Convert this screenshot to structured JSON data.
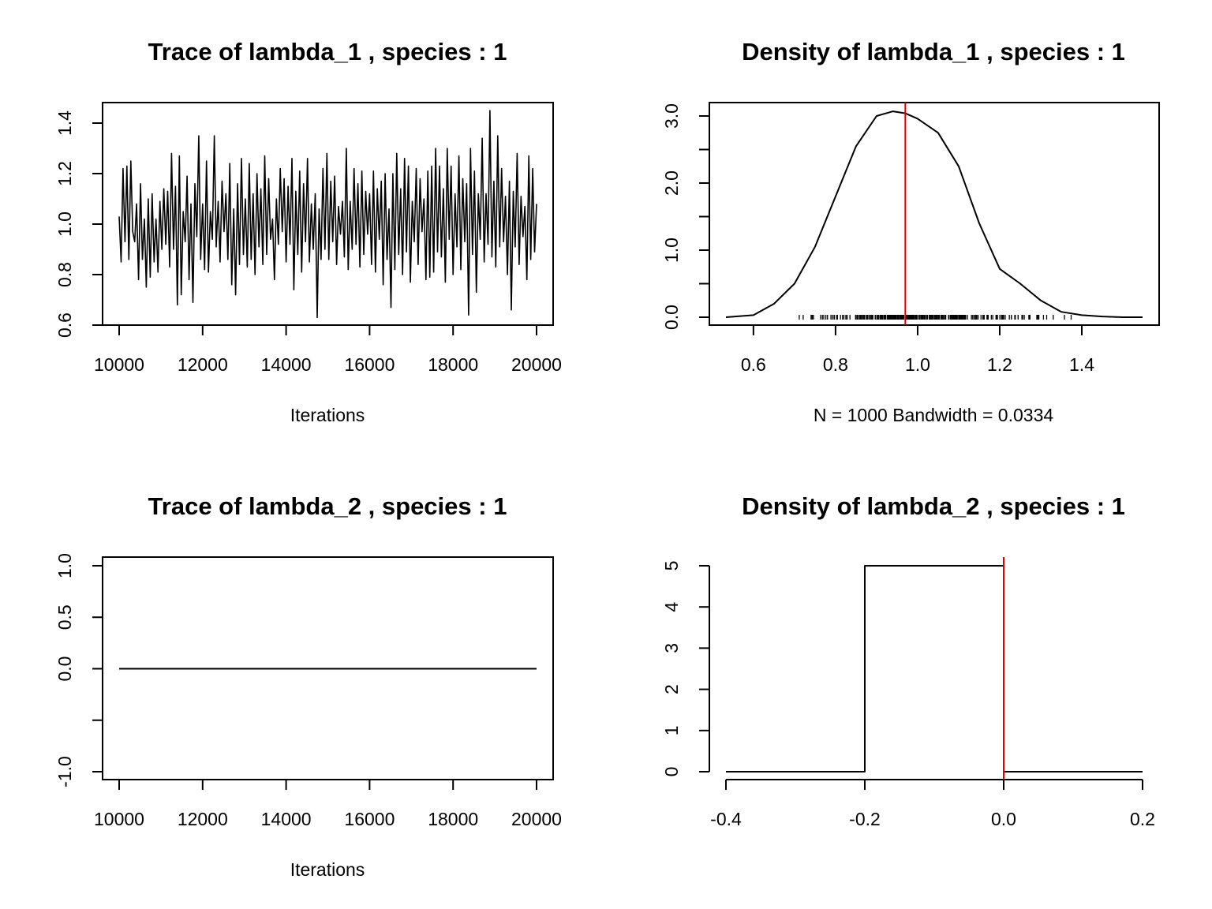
{
  "colors": {
    "line": "#000000",
    "marker": "#e00000",
    "background": "#ffffff"
  },
  "chart_data": [
    {
      "type": "line",
      "title": "Trace of lambda_1 , species :  1",
      "xlabel": "Iterations",
      "ylabel": "",
      "xlim": [
        10000,
        20000
      ],
      "ylim": [
        0.6,
        1.4
      ],
      "xticks": [
        10000,
        12000,
        14000,
        16000,
        18000,
        20000
      ],
      "xtick_labels": [
        "10000",
        "12000",
        "14000",
        "16000",
        "18000",
        "20000"
      ],
      "yticks": [
        0.6,
        0.8,
        1.0,
        1.2,
        1.4
      ],
      "ytick_labels": [
        "0.6",
        "0.8",
        "1.0",
        "1.2",
        "1.4"
      ],
      "grid": false,
      "series": [
        {
          "x_start": 10000,
          "x_end": 20000,
          "values": [
            1.03,
            0.85,
            1.22,
            0.93,
            1.23,
            0.86,
            1.25,
            0.97,
            0.93,
            1.08,
            0.78,
            1.16,
            0.86,
            1.02,
            0.75,
            1.1,
            0.79,
            1.12,
            0.85,
            1.02,
            0.81,
            1.09,
            0.9,
            1.14,
            0.92,
            1.13,
            0.83,
            1.28,
            0.9,
            1.15,
            0.68,
            1.27,
            0.72,
            1.05,
            0.93,
            1.19,
            0.78,
            1.08,
            0.69,
            1.16,
            0.95,
            1.35,
            0.86,
            1.08,
            0.82,
            1.25,
            0.81,
            1.05,
            0.94,
            1.35,
            0.91,
            1.09,
            0.85,
            1.17,
            0.97,
            1.12,
            0.86,
            1.24,
            0.76,
            1.06,
            0.72,
            1.16,
            0.84,
            1.26,
            0.88,
            1.1,
            0.83,
            1.24,
            0.86,
            1.12,
            0.8,
            1.2,
            0.91,
            1.14,
            0.84,
            1.27,
            0.88,
            1.18,
            0.94,
            1.02,
            0.78,
            1.1,
            0.92,
            1.22,
            0.97,
            1.18,
            0.85,
            1.15,
            0.92,
            1.26,
            0.74,
            1.13,
            0.88,
            1.21,
            0.81,
            1.16,
            0.93,
            1.26,
            0.85,
            1.08,
            0.9,
            1.12,
            0.63,
            1.06,
            0.86,
            1.22,
            0.9,
            1.28,
            0.86,
            1.17,
            0.93,
            1.19,
            0.84,
            1.07,
            0.96,
            1.09,
            0.87,
            1.3,
            0.82,
            1.09,
            0.9,
            1.22,
            0.92,
            1.16,
            0.83,
            1.21,
            0.88,
            1.13,
            0.96,
            1.12,
            0.84,
            1.21,
            0.81,
            1.14,
            0.94,
            1.17,
            0.76,
            1.2,
            0.86,
            1.06,
            0.67,
            1.2,
            0.82,
            1.28,
            0.88,
            1.14,
            0.8,
            1.26,
            0.89,
            1.23,
            0.77,
            1.09,
            0.93,
            1.22,
            0.84,
            1.18,
            0.97,
            1.1,
            0.78,
            1.21,
            0.79,
            1.23,
            0.81,
            1.3,
            0.89,
            1.23,
            0.87,
            1.14,
            0.77,
            1.3,
            0.94,
            1.23,
            0.8,
            1.12,
            0.91,
            1.27,
            0.82,
            1.18,
            0.93,
            1.16,
            0.64,
            1.3,
            0.88,
            1.21,
            0.73,
            1.12,
            0.94,
            1.34,
            0.85,
            1.12,
            0.92,
            1.45,
            0.87,
            1.17,
            0.83,
            1.35,
            0.91,
            1.22,
            0.93,
            1.11,
            0.8,
            1.17,
            0.66,
            1.13,
            0.91,
            1.28,
            0.84,
            1.11,
            0.95,
            1.07,
            0.78,
            1.27,
            0.86,
            1.22,
            0.89,
            1.08
          ]
        }
      ]
    },
    {
      "type": "line",
      "title": "Density of lambda_1 , species :  1",
      "xlabel": "N = 1000   Bandwidth = 0.0334",
      "ylabel": "",
      "xlim": [
        0.533,
        1.548
      ],
      "ylim": [
        0,
        3.0
      ],
      "xticks": [
        0.6,
        0.8,
        1.0,
        1.2,
        1.4
      ],
      "xtick_labels": [
        "0.6",
        "0.8",
        "1.0",
        "1.2",
        "1.4"
      ],
      "yticks": [
        0.0,
        0.5,
        1.0,
        1.5,
        2.0,
        2.5,
        3.0
      ],
      "ytick_labels": [
        "0.0",
        "",
        "1.0",
        "",
        "2.0",
        "",
        "3.0"
      ],
      "grid": false,
      "series": [
        {
          "x": [
            0.533,
            0.6,
            0.65,
            0.7,
            0.75,
            0.8,
            0.85,
            0.9,
            0.94,
            0.97,
            1.0,
            1.05,
            1.1,
            1.15,
            1.2,
            1.25,
            1.3,
            1.35,
            1.4,
            1.45,
            1.5,
            1.548
          ],
          "y": [
            0.0,
            0.03,
            0.2,
            0.5,
            1.05,
            1.8,
            2.55,
            3.0,
            3.07,
            3.04,
            2.96,
            2.75,
            2.25,
            1.4,
            0.72,
            0.5,
            0.25,
            0.08,
            0.03,
            0.01,
            0.0,
            0.0
          ]
        }
      ],
      "rug_range": [
        0.63,
        1.44
      ],
      "vline": 0.97
    },
    {
      "type": "line",
      "title": "Trace of lambda_2 , species :  1",
      "xlabel": "Iterations",
      "ylabel": "",
      "xlim": [
        10000,
        20000
      ],
      "ylim": [
        -1.0,
        1.0
      ],
      "xticks": [
        10000,
        12000,
        14000,
        16000,
        18000,
        20000
      ],
      "xtick_labels": [
        "10000",
        "12000",
        "14000",
        "16000",
        "18000",
        "20000"
      ],
      "yticks": [
        -1.0,
        -0.5,
        0.0,
        0.5,
        1.0
      ],
      "ytick_labels": [
        "-1.0",
        "",
        "0.0",
        "0.5",
        "1.0"
      ],
      "grid": false,
      "series": [
        {
          "x": [
            10000,
            20000
          ],
          "y": [
            0,
            0
          ]
        }
      ]
    },
    {
      "type": "line",
      "title": "Density of lambda_2 , species :  1",
      "xlabel": "",
      "ylabel": "",
      "xlim": [
        -0.4,
        0.2
      ],
      "ylim": [
        0,
        5
      ],
      "xticks": [
        -0.4,
        -0.2,
        0.0,
        0.2
      ],
      "xtick_labels": [
        "-0.4",
        "-0.2",
        "0.0",
        "0.2"
      ],
      "yticks": [
        0,
        1,
        2,
        3,
        4,
        5
      ],
      "ytick_labels": [
        "0",
        "1",
        "2",
        "3",
        "4",
        "5"
      ],
      "grid": false,
      "series": [
        {
          "x": [
            -0.4,
            -0.2,
            -0.2,
            0.0,
            0.0,
            0.2
          ],
          "y": [
            0,
            0,
            5,
            5,
            0,
            0
          ]
        }
      ],
      "vline": 0.0
    }
  ]
}
